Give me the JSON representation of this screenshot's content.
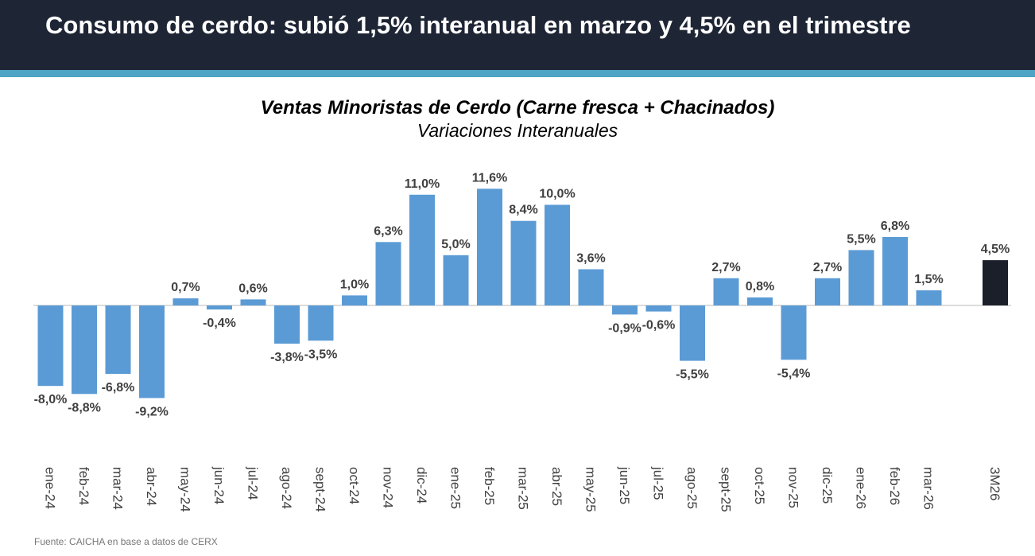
{
  "header": {
    "title": "Consumo de cerdo: subió 1,5% interanual en marzo y 4,5% en el trimestre"
  },
  "colors": {
    "header_bg": "#1e2535",
    "stripe": "#4fa3c4",
    "bar": "#5b9bd5",
    "highlight": "#1b1f2a"
  },
  "chart_data": {
    "type": "bar",
    "title": "Ventas Minoristas de Cerdo (Carne fresca + Chacinados)",
    "subtitle": "Variaciones Interanuales",
    "categories": [
      "ene-24",
      "feb-24",
      "mar-24",
      "abr-24",
      "may-24",
      "jun-24",
      "jul-24",
      "ago-24",
      "sept-24",
      "oct-24",
      "nov-24",
      "dic-24",
      "ene-25",
      "feb-25",
      "mar-25",
      "abr-25",
      "may-25",
      "jun-25",
      "jul-25",
      "ago-25",
      "sept-25",
      "oct-25",
      "nov-25",
      "dic-25",
      "ene-26",
      "feb-26",
      "mar-26",
      "3M26"
    ],
    "values": [
      -8.0,
      -8.8,
      -6.8,
      -9.2,
      0.7,
      -0.4,
      0.6,
      -3.8,
      -3.5,
      1.0,
      6.3,
      11.0,
      5.0,
      11.6,
      8.4,
      10.0,
      3.6,
      -0.9,
      -0.6,
      -5.5,
      2.7,
      0.8,
      -5.4,
      2.7,
      5.5,
      6.8,
      1.5,
      4.5
    ],
    "labels": [
      "-8,0%",
      "-8,8%",
      "-6,8%",
      "-9,2%",
      "0,7%",
      "-0,4%",
      "0,6%",
      "-3,8%",
      "-3,5%",
      "1,0%",
      "6,3%",
      "11,0%",
      "5,0%",
      "11,6%",
      "8,4%",
      "10,0%",
      "3,6%",
      "-0,9%",
      "-0,6%",
      "-5,5%",
      "2,7%",
      "0,8%",
      "-5,4%",
      "2,7%",
      "5,5%",
      "6,8%",
      "1,5%",
      "4,5%"
    ],
    "highlight_category": "3M26",
    "xlabel": "",
    "ylabel": "",
    "grid": false
  },
  "source": "Fuente: CAICHA en base a datos de CERX"
}
